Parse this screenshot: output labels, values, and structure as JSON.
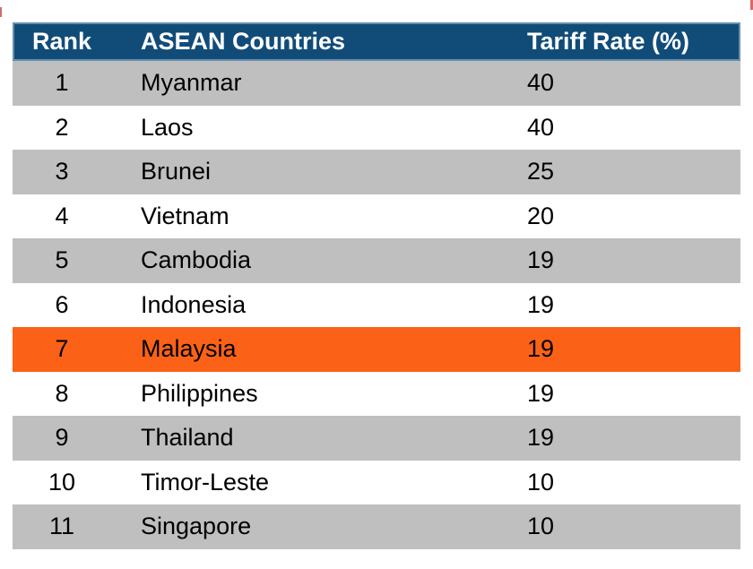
{
  "table": {
    "columns": [
      {
        "label": "Rank"
      },
      {
        "label": "ASEAN Countries"
      },
      {
        "label": "Tariff Rate (%)"
      }
    ],
    "rows": [
      {
        "rank": "1",
        "country": "Myanmar",
        "tariff": "40",
        "highlight": false
      },
      {
        "rank": "2",
        "country": "Laos",
        "tariff": "40",
        "highlight": false
      },
      {
        "rank": "3",
        "country": "Brunei",
        "tariff": "25",
        "highlight": false
      },
      {
        "rank": "4",
        "country": "Vietnam",
        "tariff": "20",
        "highlight": false
      },
      {
        "rank": "5",
        "country": "Cambodia",
        "tariff": "19",
        "highlight": false
      },
      {
        "rank": "6",
        "country": "Indonesia",
        "tariff": "19",
        "highlight": false
      },
      {
        "rank": "7",
        "country": "Malaysia",
        "tariff": "19",
        "highlight": true
      },
      {
        "rank": "8",
        "country": "Philippines",
        "tariff": "19",
        "highlight": false
      },
      {
        "rank": "9",
        "country": "Thailand",
        "tariff": "19",
        "highlight": false
      },
      {
        "rank": "10",
        "country": "Timor-Leste",
        "tariff": "10",
        "highlight": false
      },
      {
        "rank": "11",
        "country": "Singapore",
        "tariff": "10",
        "highlight": false
      }
    ]
  },
  "colors": {
    "header_bg": "#114C79",
    "header_text": "#FFFFFF",
    "row_bg": "#FFFFFF",
    "row_alt_bg": "#BFBFBF",
    "highlight_bg": "#FB6217",
    "body_text": "#000000",
    "red_mark": "#D66A6A"
  }
}
